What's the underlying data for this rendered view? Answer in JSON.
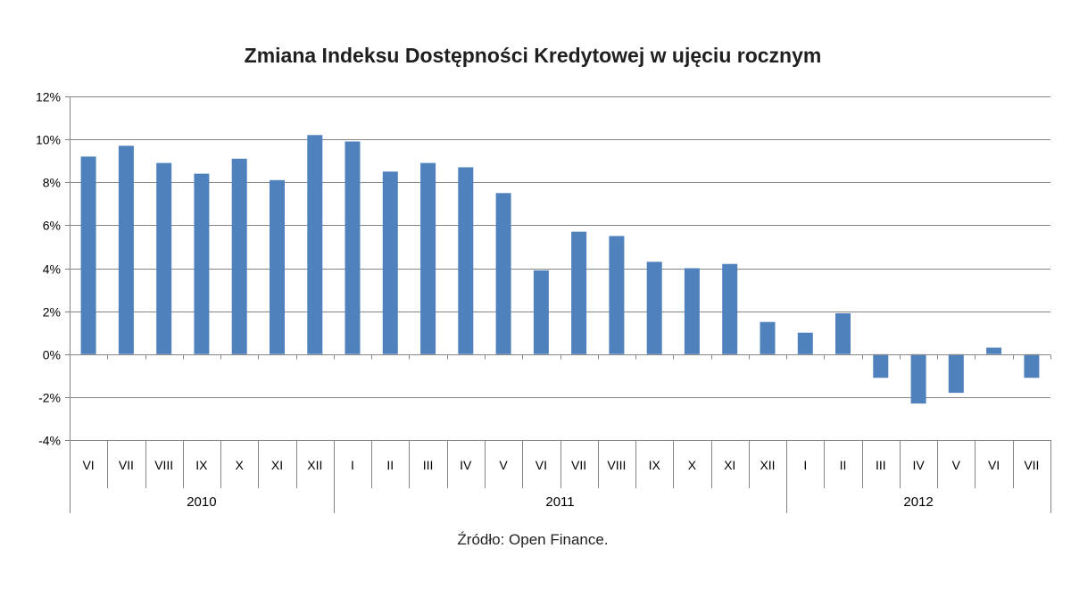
{
  "chart_data": {
    "type": "bar",
    "title": "Zmiana Indeksu Dostępności Kredytowej w ujęciu rocznym",
    "source": "Źródło: Open Finance.",
    "ylim": [
      -4,
      12
    ],
    "yticks": [
      -4,
      -2,
      0,
      2,
      4,
      6,
      8,
      10,
      12
    ],
    "ytick_labels": [
      "-4%",
      "-2%",
      "0%",
      "2%",
      "4%",
      "6%",
      "8%",
      "10%",
      "12%"
    ],
    "grid": true,
    "bar_color": "#4f81bd",
    "categories": [
      "VI",
      "VII",
      "VIII",
      "IX",
      "X",
      "XI",
      "XII",
      "I",
      "II",
      "III",
      "IV",
      "V",
      "VI",
      "VII",
      "VIII",
      "IX",
      "X",
      "XI",
      "XII",
      "I",
      "II",
      "III",
      "IV",
      "V",
      "VI",
      "VII"
    ],
    "values": [
      9.2,
      9.7,
      8.9,
      8.4,
      9.1,
      8.1,
      10.2,
      9.9,
      8.5,
      8.9,
      8.7,
      7.5,
      3.9,
      5.7,
      5.5,
      4.3,
      4.0,
      4.2,
      1.5,
      1.0,
      1.9,
      -1.1,
      -2.3,
      -1.8,
      0.3,
      -1.1
    ],
    "groups": [
      {
        "label": "2010",
        "count": 7
      },
      {
        "label": "2011",
        "count": 12
      },
      {
        "label": "2012",
        "count": 7
      }
    ]
  }
}
